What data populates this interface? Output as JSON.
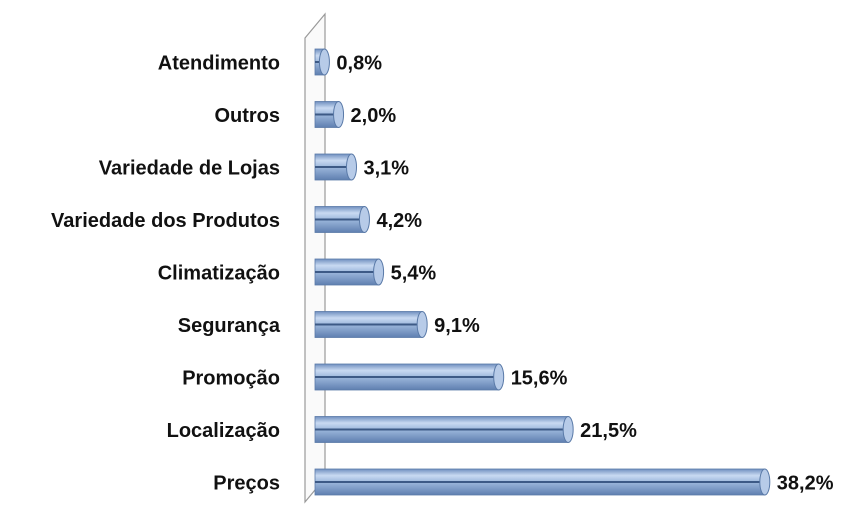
{
  "chart_data": {
    "type": "bar",
    "orientation": "horizontal",
    "categories": [
      "Atendimento",
      "Outros",
      "Variedade de Lojas",
      "Variedade dos Produtos",
      "Climatização",
      "Segurança",
      "Promoção",
      "Localização",
      "Preços"
    ],
    "values": [
      0.8,
      2.0,
      3.1,
      4.2,
      5.4,
      9.1,
      15.6,
      21.5,
      38.2
    ],
    "value_labels": [
      "0,8%",
      "2,0%",
      "3,1%",
      "4,2%",
      "5,4%",
      "9,1%",
      "15,6%",
      "21,5%",
      "38,2%"
    ],
    "color": "#9db8dc",
    "xlim": [
      0,
      40
    ]
  }
}
